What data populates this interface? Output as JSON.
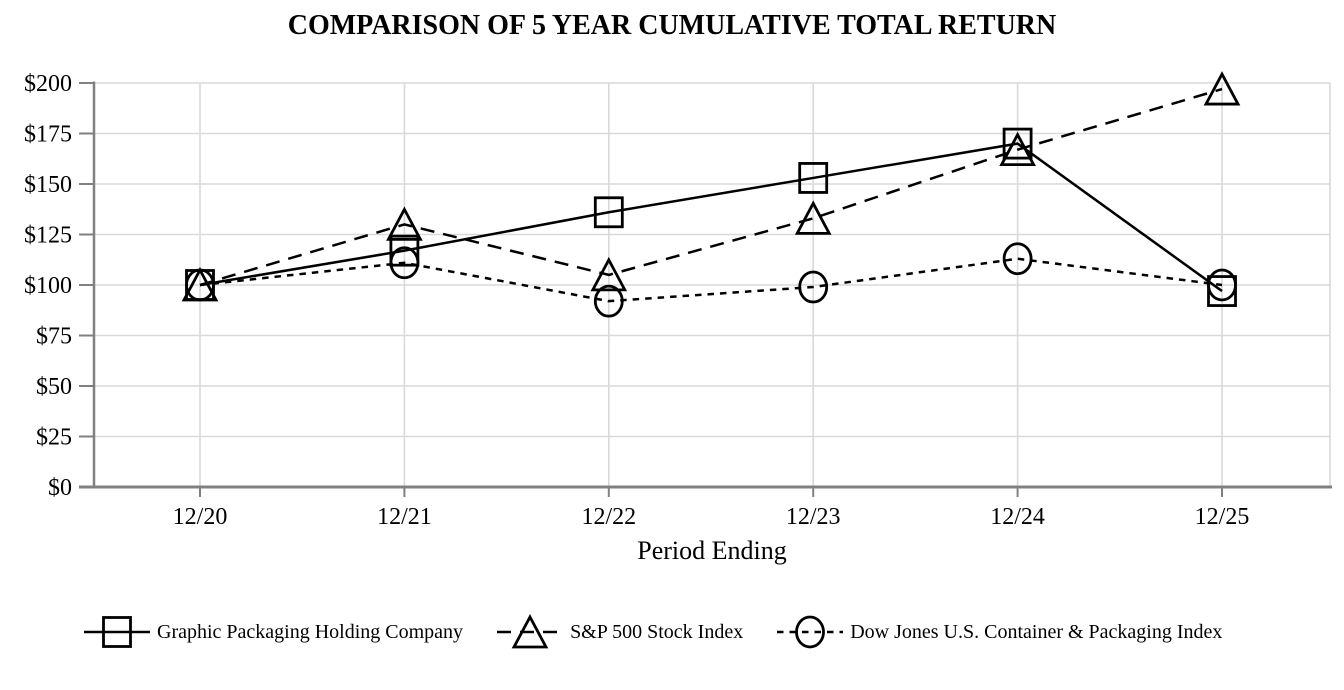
{
  "chart_data": {
    "type": "line",
    "title": "COMPARISON OF 5 YEAR CUMULATIVE TOTAL RETURN",
    "xlabel": "Period Ending",
    "ylabel": "",
    "categories": [
      "12/20",
      "12/21",
      "12/22",
      "12/23",
      "12/24",
      "12/25"
    ],
    "ytick_labels": [
      "$0",
      "$25",
      "$50",
      "$75",
      "$100",
      "$125",
      "$150",
      "$175",
      "$200"
    ],
    "ylim": [
      0,
      200
    ],
    "ytick_step": 25,
    "grid": true,
    "legend_position": "bottom",
    "series": [
      {
        "name": "Graphic Packaging Holding Company",
        "marker": "square",
        "line": "solid",
        "values": [
          100,
          117,
          136,
          153,
          170,
          97
        ]
      },
      {
        "name": "S&P 500 Stock Index",
        "marker": "triangle",
        "line": "long-dash",
        "values": [
          100,
          130,
          105,
          133,
          167,
          197
        ]
      },
      {
        "name": "Dow Jones U.S. Container & Packaging Index",
        "marker": "circle",
        "line": "short-dash",
        "values": [
          100,
          111,
          92,
          99,
          113,
          100
        ]
      }
    ],
    "colors": {
      "series": "#000000",
      "grid": "#d9d9d9",
      "axis": "#808080",
      "text": "#000000",
      "background": "#ffffff"
    }
  }
}
